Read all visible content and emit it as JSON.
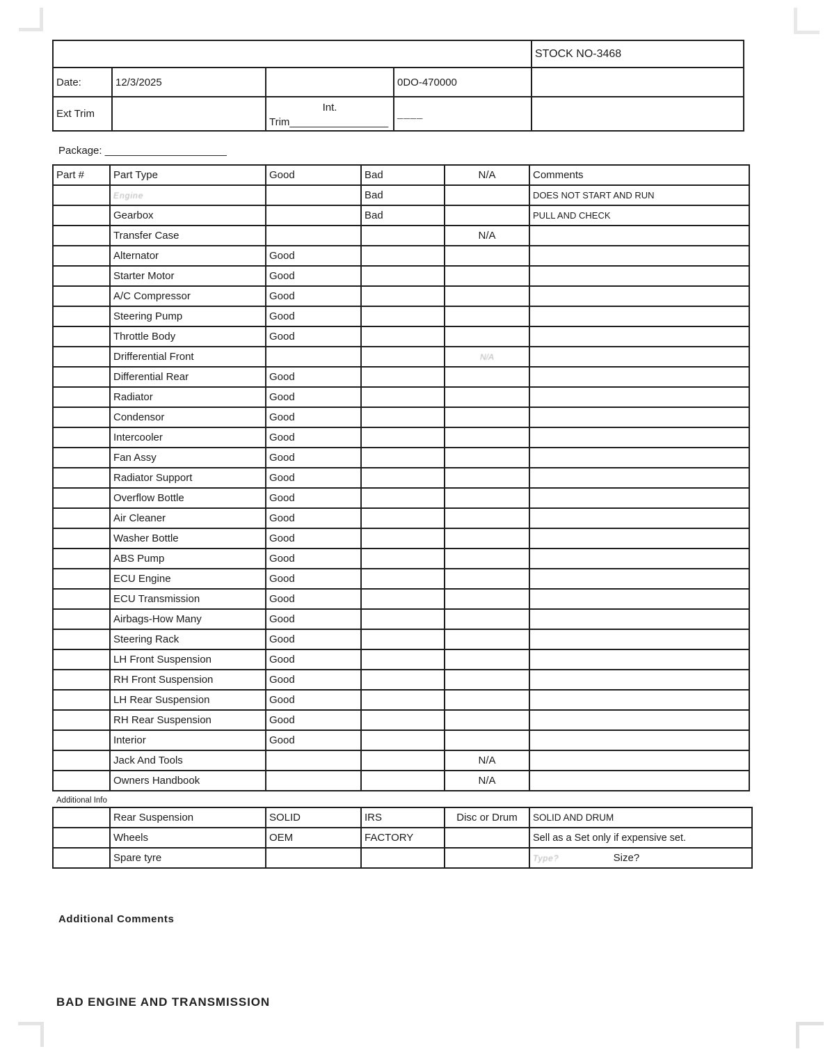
{
  "colors": {
    "ink": "#1a1a1a",
    "table_border": "#1e1e1e",
    "corner_mark": "#e5e5e5"
  },
  "header": {
    "stock_no": "STOCK NO-3468",
    "date_label": "Date:",
    "date_value": "12/3/2025",
    "odo_value": "0DO-470000",
    "ext_trim_label": "Ext Trim",
    "int_label": "Int.",
    "int_trim_line": "Trim_________________",
    "short_blank_line": "____"
  },
  "package_line": "Package: _____________________",
  "parts_table": {
    "headers": {
      "part_no": "Part #",
      "part_type": "Part Type",
      "good": "Good",
      "bad": "Bad",
      "na": "N/A",
      "comments": "Comments"
    },
    "rows": [
      {
        "part_no": "",
        "part": "Engine",
        "part_faded": true,
        "good": "",
        "bad": "Bad",
        "na": "",
        "na_faded": false,
        "comments": "DOES NOT START AND RUN"
      },
      {
        "part_no": "",
        "part": "Gearbox",
        "part_faded": false,
        "good": "",
        "bad": "Bad",
        "na": "",
        "na_faded": false,
        "comments": "PULL AND CHECK"
      },
      {
        "part_no": "",
        "part": "Transfer Case",
        "part_faded": false,
        "good": "",
        "bad": "",
        "na": "N/A",
        "na_faded": false,
        "comments": ""
      },
      {
        "part_no": "",
        "part": "Alternator",
        "part_faded": false,
        "good": "Good",
        "bad": "",
        "na": "",
        "na_faded": false,
        "comments": ""
      },
      {
        "part_no": "",
        "part": "Starter Motor",
        "part_faded": false,
        "good": "Good",
        "bad": "",
        "na": "",
        "na_faded": false,
        "comments": ""
      },
      {
        "part_no": "",
        "part": "A/C Compressor",
        "part_faded": false,
        "good": "Good",
        "bad": "",
        "na": "",
        "na_faded": false,
        "comments": ""
      },
      {
        "part_no": "",
        "part": "Steering Pump",
        "part_faded": false,
        "good": "Good",
        "bad": "",
        "na": "",
        "na_faded": false,
        "comments": ""
      },
      {
        "part_no": "",
        "part": "Throttle Body",
        "part_faded": false,
        "good": "Good",
        "bad": "",
        "na": "",
        "na_faded": false,
        "comments": ""
      },
      {
        "part_no": "",
        "part": "Drifferential Front",
        "part_faded": false,
        "good": "",
        "bad": "",
        "na": "N/A",
        "na_faded": true,
        "comments": ""
      },
      {
        "part_no": "",
        "part": "Differential Rear",
        "part_faded": false,
        "good": "Good",
        "bad": "",
        "na": "",
        "na_faded": false,
        "comments": ""
      },
      {
        "part_no": "",
        "part": "Radiator",
        "part_faded": false,
        "good": "Good",
        "bad": "",
        "na": "",
        "na_faded": false,
        "comments": ""
      },
      {
        "part_no": "",
        "part": "Condensor",
        "part_faded": false,
        "good": "Good",
        "bad": "",
        "na": "",
        "na_faded": false,
        "comments": ""
      },
      {
        "part_no": "",
        "part": "Intercooler",
        "part_faded": false,
        "good": "Good",
        "bad": "",
        "na": "",
        "na_faded": false,
        "comments": ""
      },
      {
        "part_no": "",
        "part": "Fan Assy",
        "part_faded": false,
        "good": "Good",
        "bad": "",
        "na": "",
        "na_faded": false,
        "comments": ""
      },
      {
        "part_no": "",
        "part": "Radiator Support",
        "part_faded": false,
        "good": "Good",
        "bad": "",
        "na": "",
        "na_faded": false,
        "comments": ""
      },
      {
        "part_no": "",
        "part": "Overflow Bottle",
        "part_faded": false,
        "good": "Good",
        "bad": "",
        "na": "",
        "na_faded": false,
        "comments": ""
      },
      {
        "part_no": "",
        "part": "Air Cleaner",
        "part_faded": false,
        "good": "Good",
        "bad": "",
        "na": "",
        "na_faded": false,
        "comments": ""
      },
      {
        "part_no": "",
        "part": "Washer Bottle",
        "part_faded": false,
        "good": "Good",
        "bad": "",
        "na": "",
        "na_faded": false,
        "comments": ""
      },
      {
        "part_no": "",
        "part": "ABS Pump",
        "part_faded": false,
        "good": "Good",
        "bad": "",
        "na": "",
        "na_faded": false,
        "comments": ""
      },
      {
        "part_no": "",
        "part": "ECU Engine",
        "part_faded": false,
        "good": "Good",
        "bad": "",
        "na": "",
        "na_faded": false,
        "comments": ""
      },
      {
        "part_no": "",
        "part": "ECU Transmission",
        "part_faded": false,
        "good": "Good",
        "bad": "",
        "na": "",
        "na_faded": false,
        "comments": ""
      },
      {
        "part_no": "",
        "part": "Airbags-How Many",
        "part_faded": false,
        "good": "Good",
        "bad": "",
        "na": "",
        "na_faded": false,
        "comments": ""
      },
      {
        "part_no": "",
        "part": "Steering Rack",
        "part_faded": false,
        "good": "Good",
        "bad": "",
        "na": "",
        "na_faded": false,
        "comments": ""
      },
      {
        "part_no": "",
        "part": "LH Front Suspension",
        "part_faded": false,
        "good": "Good",
        "bad": "",
        "na": "",
        "na_faded": false,
        "comments": ""
      },
      {
        "part_no": "",
        "part": "RH Front Suspension",
        "part_faded": false,
        "good": "Good",
        "bad": "",
        "na": "",
        "na_faded": false,
        "comments": ""
      },
      {
        "part_no": "",
        "part": "LH Rear Suspension",
        "part_faded": false,
        "good": "Good",
        "bad": "",
        "na": "",
        "na_faded": false,
        "comments": ""
      },
      {
        "part_no": "",
        "part": "RH Rear Suspension",
        "part_faded": false,
        "good": "Good",
        "bad": "",
        "na": "",
        "na_faded": false,
        "comments": ""
      },
      {
        "part_no": "",
        "part": "Interior",
        "part_faded": false,
        "good": "Good",
        "bad": "",
        "na": "",
        "na_faded": false,
        "comments": ""
      },
      {
        "part_no": "",
        "part": "Jack And Tools",
        "part_faded": false,
        "good": "",
        "bad": "",
        "na": "N/A",
        "na_faded": false,
        "comments": ""
      },
      {
        "part_no": "",
        "part": "Owners Handbook",
        "part_faded": false,
        "good": "",
        "bad": "",
        "na": "N/A",
        "na_faded": false,
        "comments": ""
      }
    ]
  },
  "additional_info": {
    "label": "Additional Info",
    "rows": [
      {
        "part_no": "",
        "part": "Rear Suspension",
        "c3": "SOLID",
        "c4": "IRS",
        "c5": "Disc or Drum",
        "comments": "SOLID AND DRUM"
      },
      {
        "part_no": "",
        "part": "Wheels",
        "c3": "OEM",
        "c4": "FACTORY",
        "c5": "",
        "comments": "Sell as a Set only if expensive set."
      },
      {
        "part_no": "",
        "part": "Spare tyre",
        "c3": "",
        "c4": "",
        "c5": "",
        "comment_faded": "Type?",
        "comment_extra": "Size?"
      }
    ]
  },
  "footer": {
    "additional_comments_label": "Additional Comments",
    "bottom_note": "BAD ENGINE AND TRANSMISSION"
  }
}
